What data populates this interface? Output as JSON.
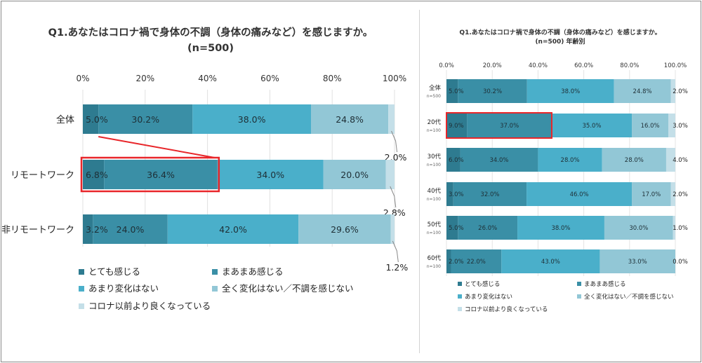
{
  "colors": [
    "#2e7b90",
    "#3a8fa6",
    "#4aafca",
    "#92c7d6",
    "#c4dfe8"
  ],
  "highlight_color": "#e8262a",
  "chart_data": [
    {
      "type": "bar",
      "stacked": true,
      "orientation": "horizontal",
      "title_line1": "Q1.あなたはコロナ禍で身体の不調（身体の痛みなど）を感じますか。",
      "title_line2": "(n=500)",
      "xlim": [
        0,
        100
      ],
      "x_ticks": [
        "0%",
        "20%",
        "40%",
        "60%",
        "80%",
        "100%"
      ],
      "categories": [
        "全体",
        "リモートワーク",
        "非リモートワーク"
      ],
      "series": [
        {
          "name": "とても感じる",
          "values": [
            5.0,
            6.8,
            3.2
          ]
        },
        {
          "name": "まあまあ感じる",
          "values": [
            30.2,
            36.4,
            24.0
          ]
        },
        {
          "name": "あまり変化はない",
          "values": [
            38.0,
            34.0,
            42.0
          ]
        },
        {
          "name": "全く変化はない／不調を感じない",
          "values": [
            24.8,
            20.0,
            29.6
          ]
        },
        {
          "name": "コロナ以前より良くなっている",
          "values": [
            2.0,
            2.8,
            1.2
          ]
        }
      ],
      "highlight": {
        "category_index": 1,
        "series_indices": [
          0,
          1
        ]
      },
      "legend": "bottom"
    },
    {
      "type": "bar",
      "stacked": true,
      "orientation": "horizontal",
      "title_line1": "Q1.あなたはコロナ禍で身体の不調（身体の痛みなど）を感じますか。",
      "title_line2": "(n=500) 年齢別",
      "xlim": [
        0,
        100
      ],
      "x_ticks": [
        "0.0%",
        "20.0%",
        "40.0%",
        "60.0%",
        "80.0%",
        "100.0%"
      ],
      "categories": [
        "全体",
        "20代",
        "30代",
        "40代",
        "50代",
        "60代"
      ],
      "category_notes": [
        "n=500",
        "n=100",
        "n=100",
        "n=100",
        "n=100",
        "n=100"
      ],
      "series": [
        {
          "name": "とても感じる",
          "values": [
            5.0,
            9.0,
            6.0,
            3.0,
            5.0,
            2.0
          ]
        },
        {
          "name": "まあまあ感じる",
          "values": [
            30.2,
            37.0,
            34.0,
            32.0,
            26.0,
            22.0
          ]
        },
        {
          "name": "あまり変化はない",
          "values": [
            38.0,
            35.0,
            28.0,
            46.0,
            38.0,
            43.0
          ]
        },
        {
          "name": "全く変化はない／不調を感じない",
          "values": [
            24.8,
            16.0,
            28.0,
            17.0,
            30.0,
            33.0
          ]
        },
        {
          "name": "コロナ以前より良くなっている",
          "values": [
            2.0,
            3.0,
            4.0,
            2.0,
            1.0,
            0.0
          ]
        }
      ],
      "highlight": {
        "category_index": 1,
        "series_indices": [
          0,
          1
        ]
      },
      "legend": "bottom"
    }
  ]
}
